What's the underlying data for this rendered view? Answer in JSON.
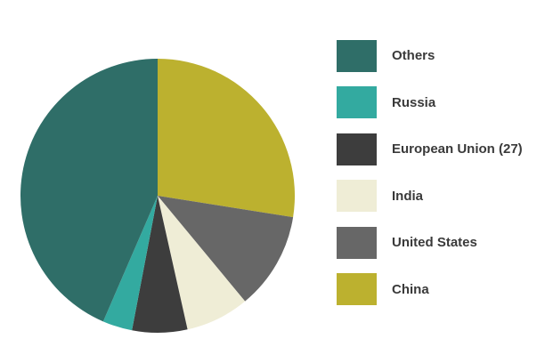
{
  "chart_data": {
    "type": "pie",
    "title": "",
    "start": "top",
    "direction": "clockwise",
    "legend_position": "right",
    "slices": [
      {
        "name": "China",
        "value": 27.5,
        "color": "#bcb12f"
      },
      {
        "name": "United States",
        "value": 11.5,
        "color": "#676767"
      },
      {
        "name": "India",
        "value": 7.5,
        "color": "#efedd6"
      },
      {
        "name": "European Union (27)",
        "value": 6.5,
        "color": "#3d3d3d"
      },
      {
        "name": "Russia",
        "value": 3.5,
        "color": "#33aaa0"
      },
      {
        "name": "Others",
        "value": 43.5,
        "color": "#2f6e68"
      }
    ],
    "legend": [
      {
        "label": "Others",
        "color": "#2f6e68"
      },
      {
        "label": "Russia",
        "color": "#33aaa0"
      },
      {
        "label": "European Union (27)",
        "color": "#3d3d3d"
      },
      {
        "label": "India",
        "color": "#efedd6"
      },
      {
        "label": "United States",
        "color": "#676767"
      },
      {
        "label": "China",
        "color": "#bcb12f"
      }
    ]
  }
}
